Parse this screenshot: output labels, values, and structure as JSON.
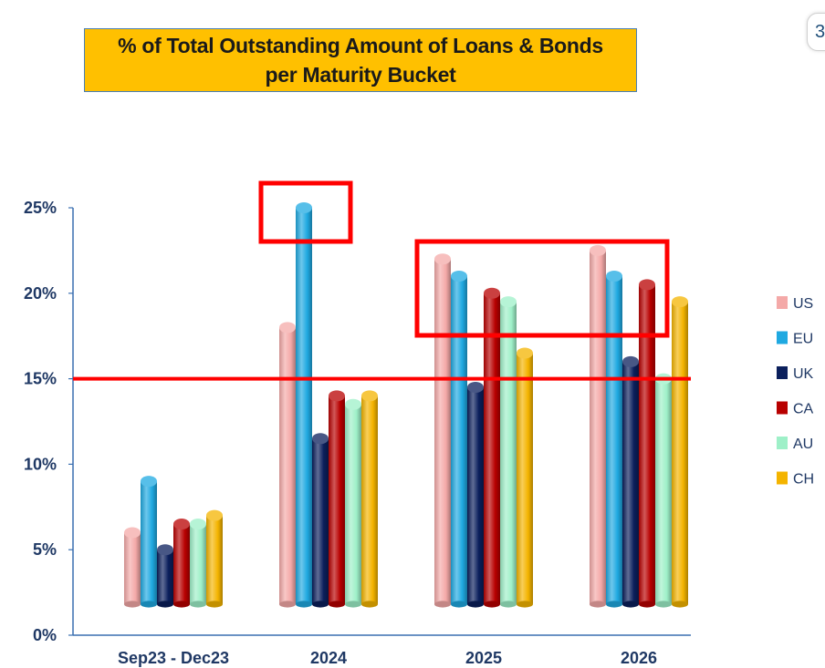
{
  "title": {
    "line1": "% of Total Outstanding Amount of Loans & Bonds",
    "line2": "per Maturity Bucket"
  },
  "corner_icon": {
    "name": "copy-icon",
    "glyph": "3"
  },
  "chart_data": {
    "type": "bar",
    "title": "% of Total Outstanding Amount of Loans & Bonds per Maturity Bucket",
    "categories": [
      "Sep23 - Dec23",
      "2024",
      "2025",
      "2026"
    ],
    "series": [
      {
        "name": "US",
        "color": "#F4A9A8",
        "values": [
          6,
          18,
          22,
          22.5
        ]
      },
      {
        "name": "EU",
        "color": "#1FA9E1",
        "values": [
          9,
          25,
          21,
          21
        ]
      },
      {
        "name": "UK",
        "color": "#0B1F5C",
        "values": [
          5,
          11.5,
          14.5,
          16
        ]
      },
      {
        "name": "CA",
        "color": "#B80000",
        "values": [
          6.5,
          14,
          20,
          20.5
        ]
      },
      {
        "name": "AU",
        "color": "#9EF0C8",
        "values": [
          6.5,
          13.5,
          19.5,
          15
        ]
      },
      {
        "name": "CH",
        "color": "#F4B400",
        "values": [
          7,
          14,
          16.5,
          19.5
        ]
      }
    ],
    "yticks": [
      "0%",
      "5%",
      "10%",
      "15%",
      "20%",
      "25%"
    ],
    "ylim": [
      0,
      25
    ],
    "xlabel": "",
    "ylabel": "",
    "legend": "right",
    "grid": false,
    "reference_line": {
      "value": 15,
      "color": "#FF0000"
    },
    "highlight_boxes": [
      {
        "category": "2024",
        "series": [
          "EU"
        ],
        "color": "#FF0000"
      },
      {
        "categories": [
          "2025",
          "2026"
        ],
        "color": "#FF0000"
      }
    ]
  }
}
